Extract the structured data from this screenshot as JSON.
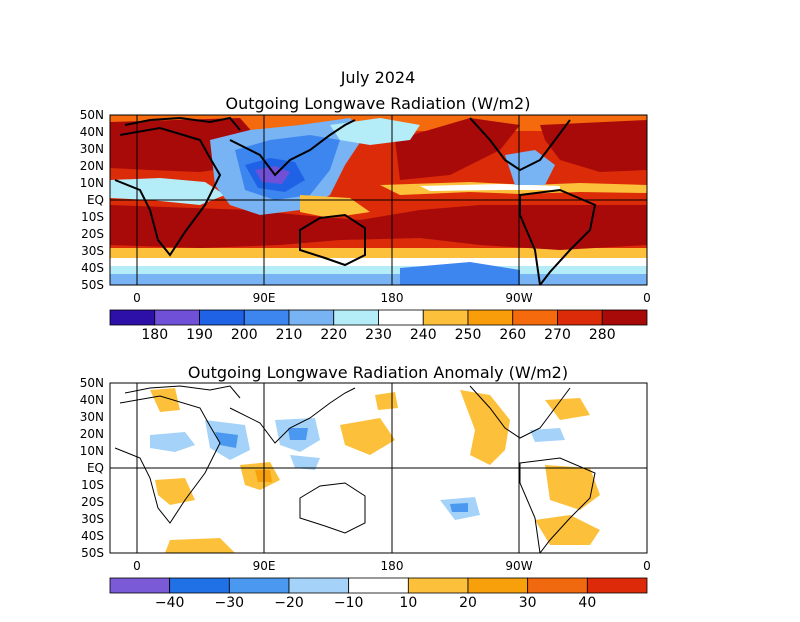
{
  "header": {
    "title": "July 2024"
  },
  "panels": [
    {
      "title": "Outgoing Longwave Radiation (W/m2)",
      "lat_ticks": [
        "50N",
        "40N",
        "30N",
        "20N",
        "10N",
        "EQ",
        "10S",
        "20S",
        "30S",
        "40S",
        "50S"
      ],
      "lon_ticks": [
        "0",
        "90E",
        "180",
        "90W",
        "0"
      ],
      "colorbar": {
        "colors": [
          "#2c10a8",
          "#7050d6",
          "#1f62e6",
          "#3d86f0",
          "#78b4f4",
          "#b4ecf8",
          "#ffffff",
          "#fdc03a",
          "#f99d0b",
          "#f46a0c",
          "#dc2b08",
          "#a80a0a"
        ],
        "labels": [
          "180",
          "190",
          "200",
          "210",
          "220",
          "230",
          "240",
          "250",
          "260",
          "270",
          "280"
        ]
      }
    },
    {
      "title": "Outgoing Longwave Radiation Anomaly (W/m2)",
      "lat_ticks": [
        "50N",
        "40N",
        "30N",
        "20N",
        "10N",
        "EQ",
        "10S",
        "20S",
        "30S",
        "40S",
        "50S"
      ],
      "lon_ticks": [
        "0",
        "90E",
        "180",
        "90W",
        "0"
      ],
      "colorbar": {
        "colors": [
          "#7a5ad6",
          "#2070e6",
          "#4a98f0",
          "#a4d2f8",
          "#ffffff",
          "#fcc03a",
          "#f7a00c",
          "#f1690e",
          "#dd2a08"
        ],
        "labels": [
          "−40",
          "−30",
          "−20",
          "−10",
          "10",
          "20",
          "30",
          "40"
        ]
      }
    }
  ]
}
